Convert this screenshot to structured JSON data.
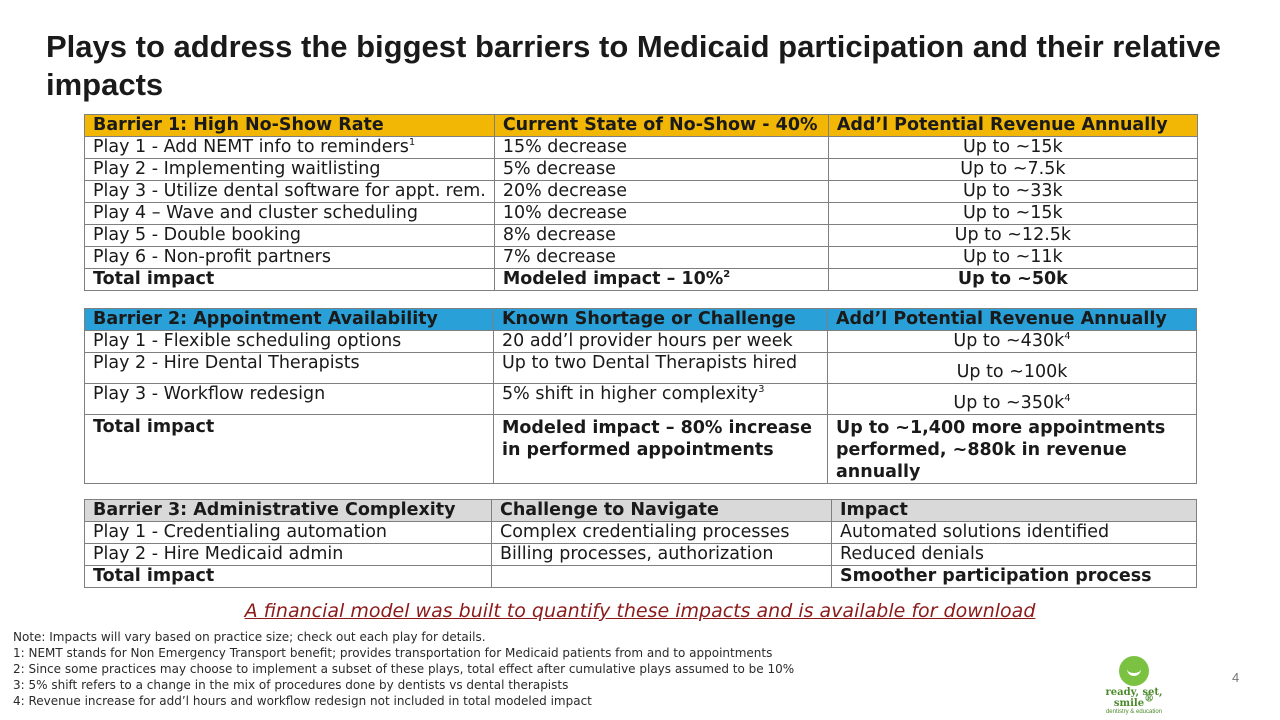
{
  "title": "Plays to address the biggest barriers to Medicaid participation and their relative impacts",
  "barrier1": {
    "headers": [
      "Barrier 1: High No-Show Rate",
      "Current State of No-Show - 40%",
      "Add’l Potential Revenue Annually"
    ],
    "rows": [
      {
        "play": "Play 1 - Add NEMT info to reminders",
        "play_sup": "1",
        "state": "15% decrease",
        "revenue": "Up to ~15k"
      },
      {
        "play": "Play 2 - Implementing waitlisting",
        "state": "5% decrease",
        "revenue": "Up to ~7.5k"
      },
      {
        "play": "Play 3 - Utilize dental software for appt. rem.",
        "state": "20% decrease",
        "revenue": "Up to ~33k"
      },
      {
        "play": "Play 4 – Wave and cluster scheduling",
        "state": "10% decrease",
        "revenue": "Up to ~15k"
      },
      {
        "play": "Play 5 - Double booking",
        "state": "8% decrease",
        "revenue": "Up to ~12.5k"
      },
      {
        "play": "Play 6 - Non-profit partners",
        "state": "7% decrease",
        "revenue": "Up to ~11k"
      }
    ],
    "total": {
      "label": "Total impact",
      "state": "Modeled impact – 10%",
      "state_sup": "2",
      "revenue": "Up to ~50k"
    }
  },
  "barrier2": {
    "headers": [
      "Barrier 2: Appointment Availability",
      "Known Shortage or Challenge",
      "Add’l Potential Revenue Annually"
    ],
    "rows": [
      {
        "play": "Play 1 - Flexible scheduling options",
        "state": "20 add’l provider hours per week",
        "revenue": "Up to ~430k",
        "revenue_sup": "4"
      },
      {
        "play": "Play 2 - Hire Dental Therapists",
        "state": "Up to two Dental Therapists hired",
        "revenue": "Up to ~100k"
      },
      {
        "play": "Play 3 - Workflow redesign",
        "state": "5% shift in higher complexity",
        "state_sup": "3",
        "revenue": "Up to ~350k",
        "revenue_sup": "4"
      }
    ],
    "total": {
      "label": "Total impact",
      "state": "Modeled impact – 80% increase in performed appointments",
      "revenue": "Up to ~1,400 more appointments performed, ~880k in revenue annually"
    }
  },
  "barrier3": {
    "headers": [
      "Barrier 3: Administrative Complexity",
      "Challenge to Navigate",
      "Impact"
    ],
    "rows": [
      {
        "play": "Play 1 - Credentialing automation",
        "state": "Complex credentialing processes",
        "revenue": "Automated solutions identified"
      },
      {
        "play": "Play 2 - Hire Medicaid admin",
        "state": "Billing processes, authorization",
        "revenue": "Reduced denials"
      }
    ],
    "total": {
      "label": "Total impact",
      "state": "",
      "revenue": "Smoother participation process"
    }
  },
  "model_link": "A financial model was built to quantify these impacts and is available for download",
  "notes": [
    "Note: Impacts will vary based on practice size; check out each play for details.",
    "1: NEMT stands for Non Emergency Transport benefit; provides transportation for Medicaid patients from and to appointments",
    "2: Since some practices may choose to implement a subset of these plays, total effect after cumulative plays assumed to be 10%",
    "3: 5% shift refers to a change in the mix of procedures done by dentists vs dental therapists",
    "4: Revenue increase for add’l hours and workflow redesign not included in total modeled impact"
  ],
  "page_number": "4",
  "logo": {
    "text": "ready, set, smile",
    "mark": "®",
    "subtext": "dentistry & education",
    "color": "#7cc242"
  },
  "colors": {
    "barrier1_header": "#f2b705",
    "barrier2_header": "#2aa0d8",
    "barrier3_header": "#d9d9d9",
    "link": "#8b1a1a"
  }
}
